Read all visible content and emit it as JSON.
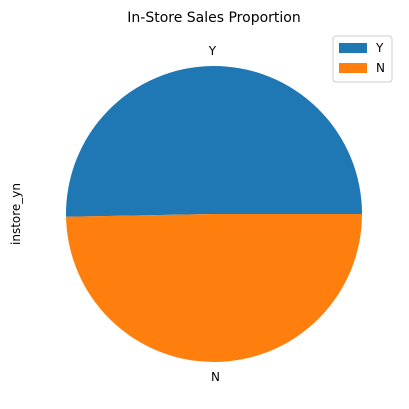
{
  "chart_data": {
    "type": "pie",
    "title": "In-Store Sales Proportion",
    "ylabel": "instore_yn",
    "slices": [
      {
        "label": "Y",
        "value": 50.3,
        "color": "#1f77b4"
      },
      {
        "label": "N",
        "value": 49.7,
        "color": "#ff7f0e"
      }
    ],
    "legend": {
      "placement": "top-right",
      "entries": [
        "Y",
        "N"
      ]
    }
  }
}
